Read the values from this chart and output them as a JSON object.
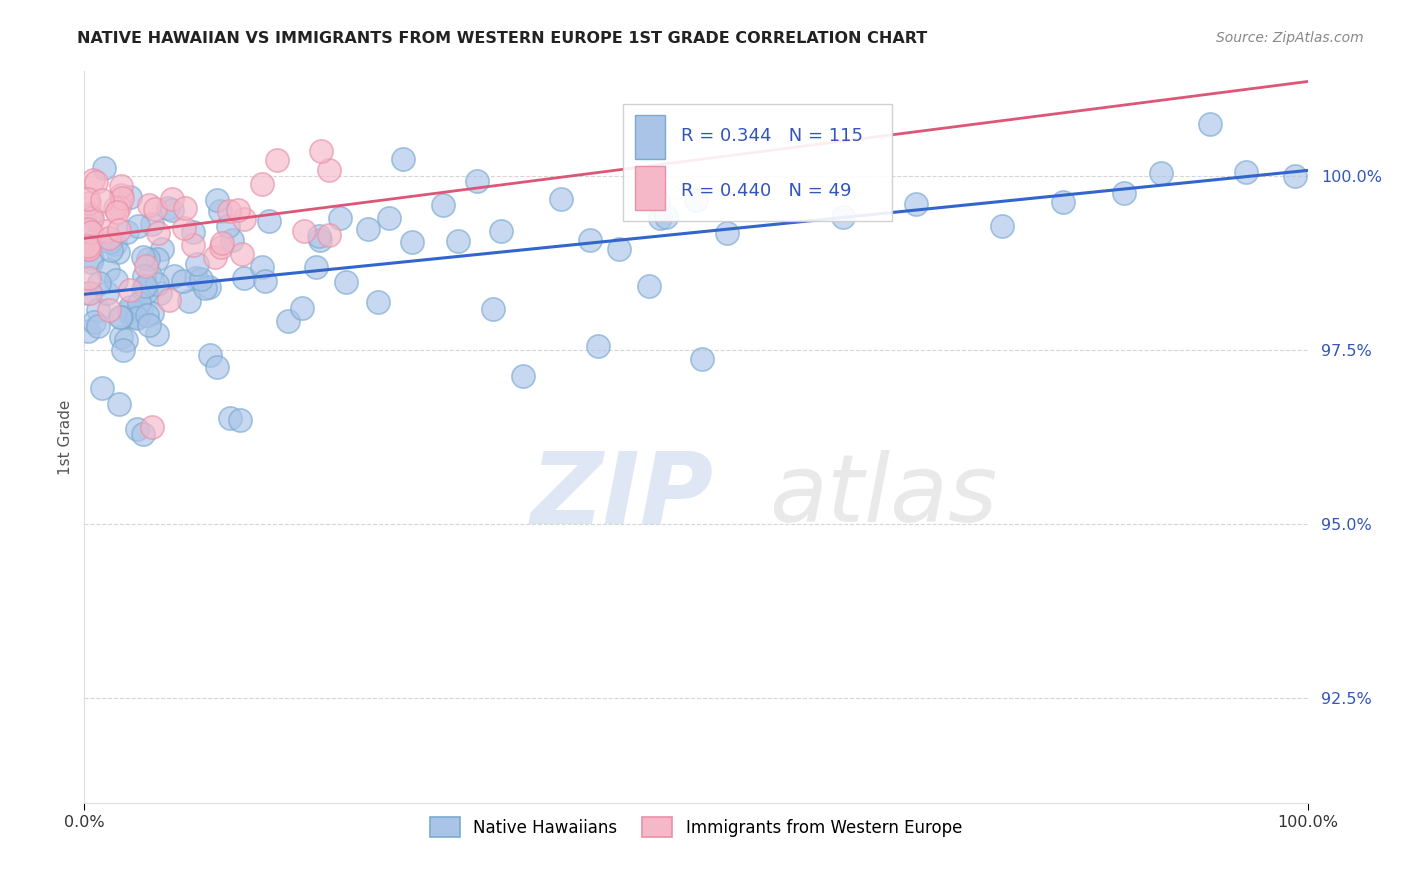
{
  "title": "NATIVE HAWAIIAN VS IMMIGRANTS FROM WESTERN EUROPE 1ST GRADE CORRELATION CHART",
  "source": "Source: ZipAtlas.com",
  "ylabel": "1st Grade",
  "yticks": [
    92.5,
    95.0,
    97.5,
    100.0
  ],
  "xlim": [
    0.0,
    100.0
  ],
  "ylim": [
    91.0,
    101.5
  ],
  "blue_R": 0.344,
  "blue_N": 115,
  "pink_R": 0.44,
  "pink_N": 49,
  "blue_color": "#aac4e8",
  "blue_edge_color": "#7aaad0",
  "blue_line_color": "#3366cc",
  "pink_color": "#f5b8c8",
  "pink_edge_color": "#e890a8",
  "pink_line_color": "#dd5577",
  "background_color": "#ffffff",
  "watermark_color": "#d8e4f0",
  "title_color": "#222222",
  "source_color": "#888888",
  "ylabel_color": "#555555",
  "ytick_color": "#3355bb",
  "grid_color": "#cccccc"
}
